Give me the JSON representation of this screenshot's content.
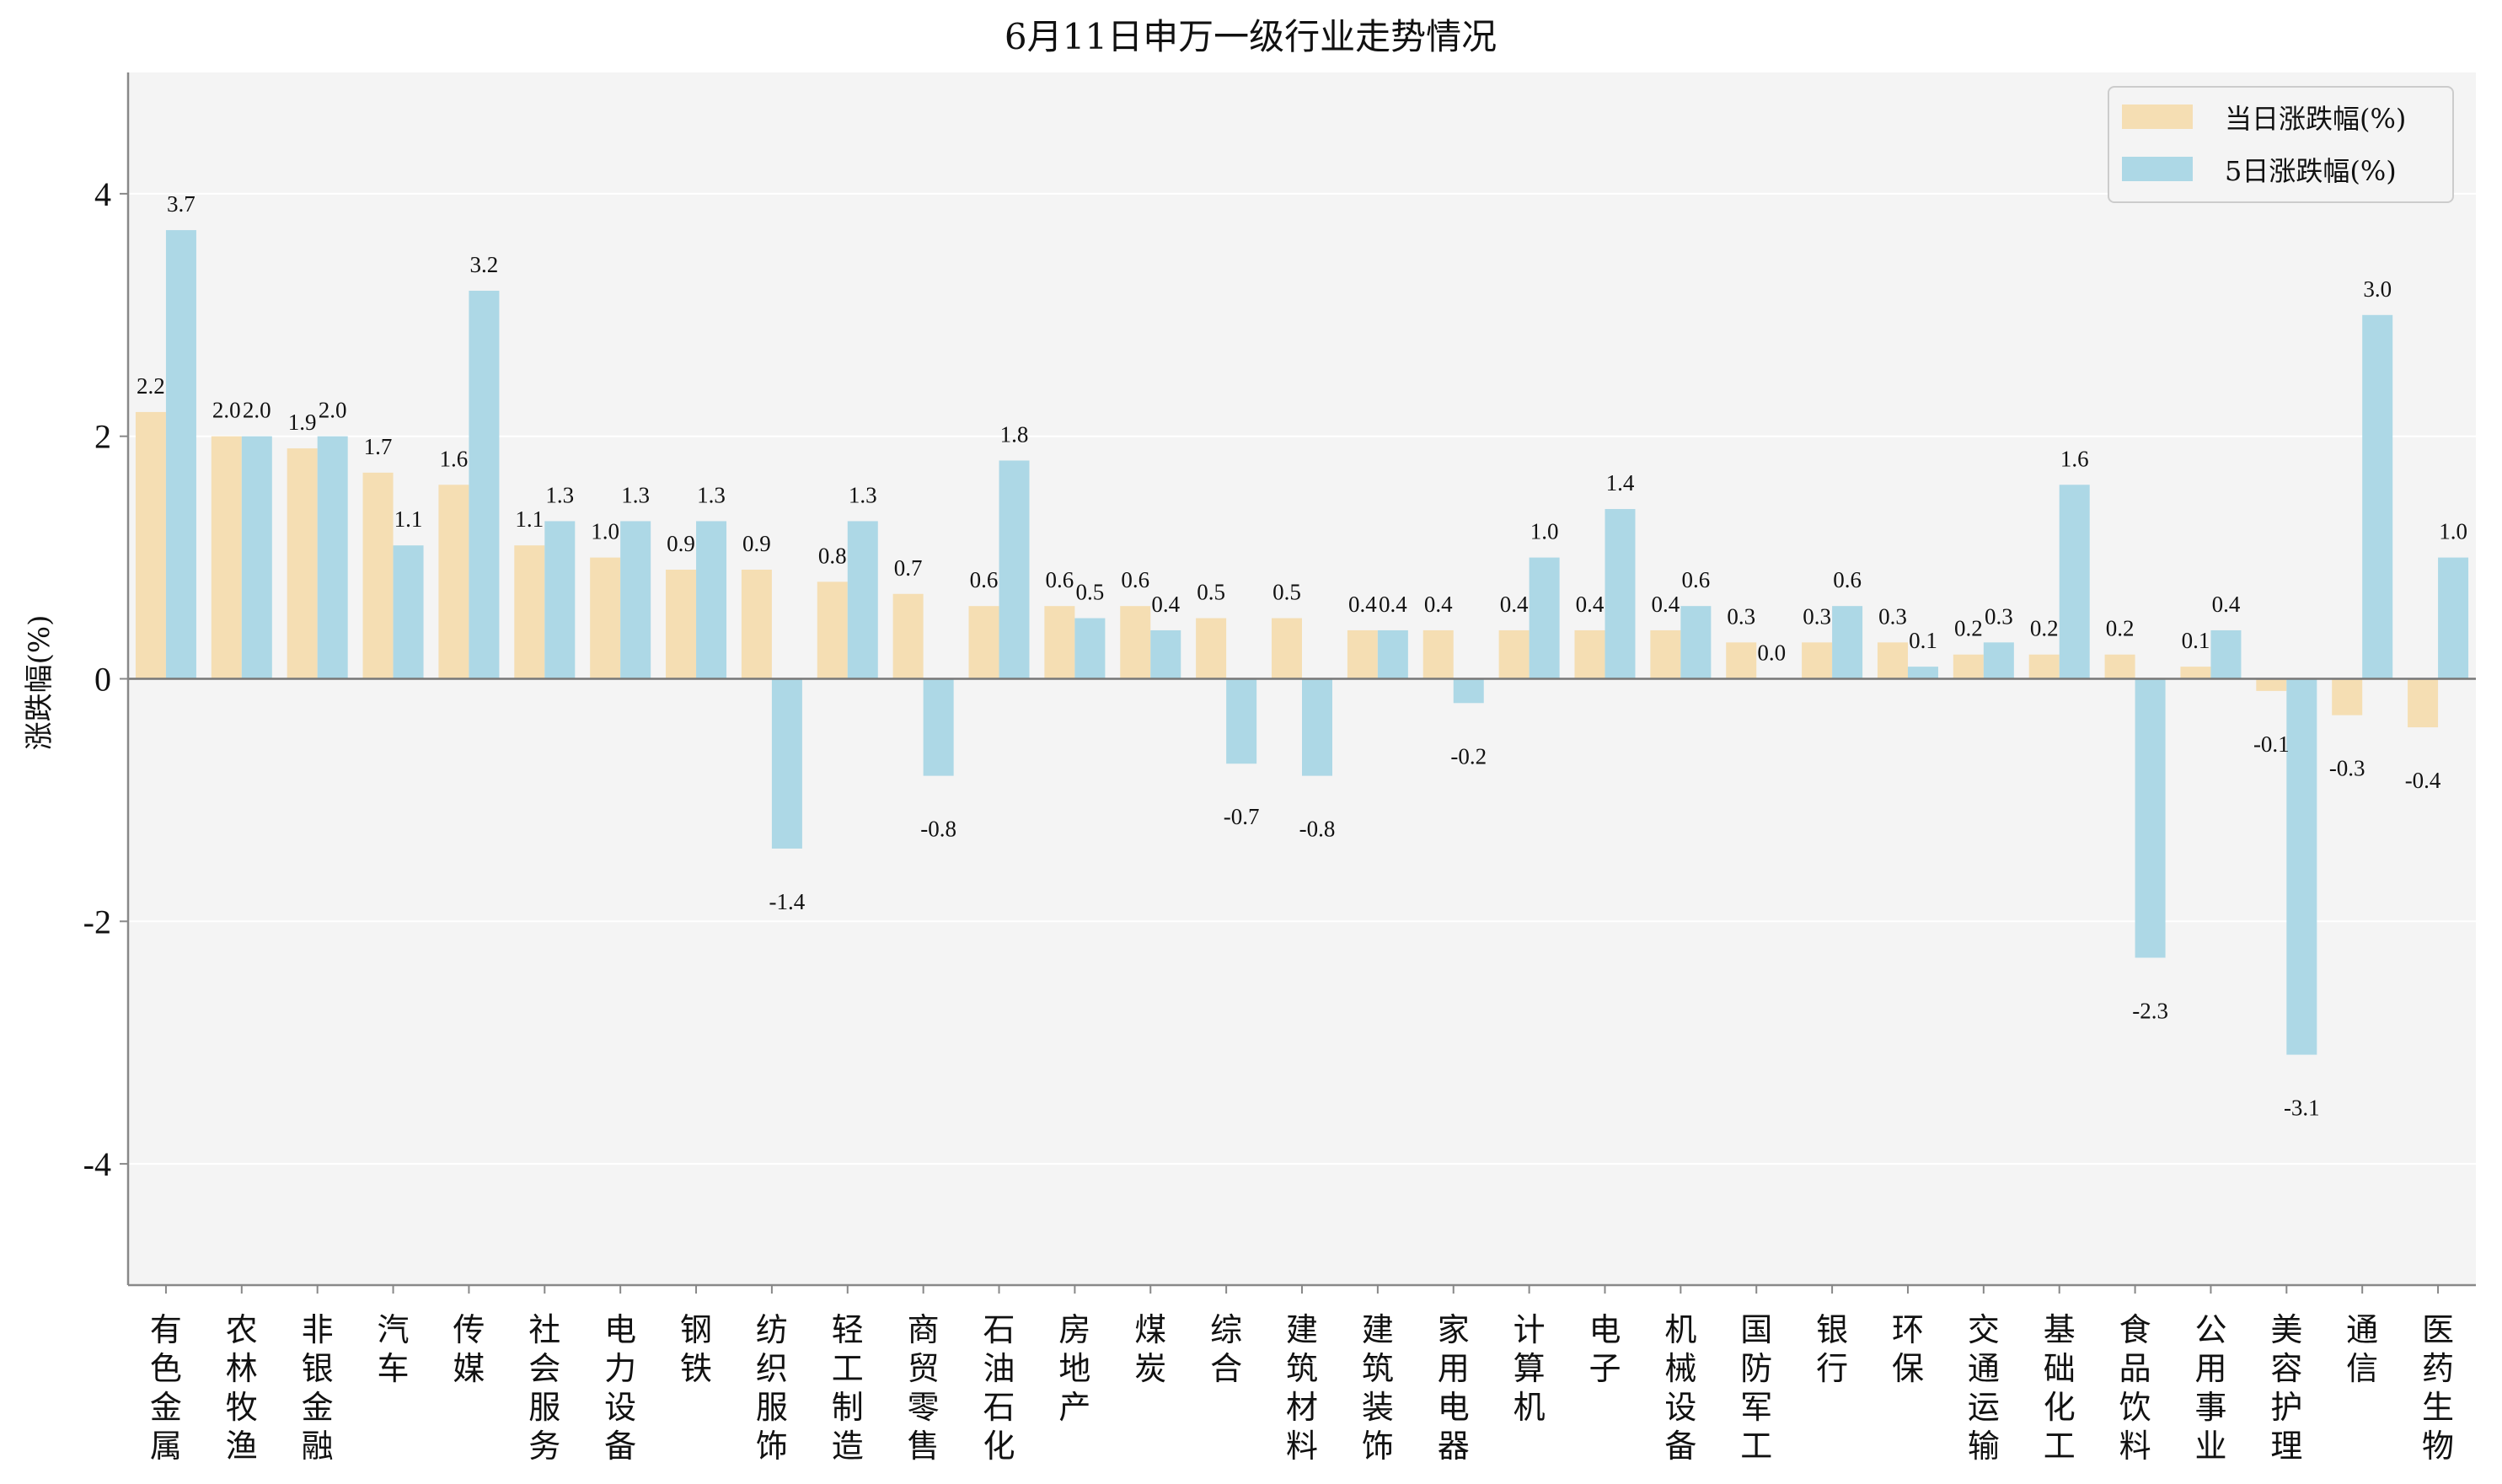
{
  "chart_data": {
    "type": "bar",
    "title": "6月11日申万一级行业走势情况",
    "ylabel": "涨跌幅(%)",
    "xlabel": "",
    "ylim": [
      -5,
      5
    ],
    "yticks": [
      4,
      2,
      0,
      -2,
      -4
    ],
    "ytick_labels": [
      "4",
      "2",
      "0",
      "-2",
      "-4"
    ],
    "grid": "horizontal",
    "legend_position": "top-right",
    "categories": [
      "有色金属",
      "农林牧渔",
      "非银金融",
      "汽车",
      "传媒",
      "社会服务",
      "电力设备",
      "钢铁",
      "纺织服饰",
      "轻工制造",
      "商贸零售",
      "石油石化",
      "房地产",
      "煤炭",
      "综合",
      "建筑材料",
      "建筑装饰",
      "家用电器",
      "计算机",
      "电子",
      "机械设备",
      "国防军工",
      "银行",
      "环保",
      "交通运输",
      "基础化工",
      "食品饮料",
      "公用事业",
      "美容护理",
      "通信",
      "医药生物"
    ],
    "series": [
      {
        "name": "当日涨跌幅(%)",
        "color": "#f5deb3",
        "values": [
          2.2,
          2.0,
          1.9,
          1.7,
          1.6,
          1.1,
          1.0,
          0.9,
          0.9,
          0.8,
          0.7,
          0.6,
          0.6,
          0.6,
          0.5,
          0.5,
          0.4,
          0.4,
          0.4,
          0.4,
          0.4,
          0.3,
          0.3,
          0.3,
          0.2,
          0.2,
          0.2,
          0.1,
          -0.1,
          -0.3,
          -0.4
        ],
        "labels": [
          "2.2",
          "2.0",
          "1.9",
          "1.7",
          "1.6",
          "1.1",
          "1.0",
          "0.9",
          "0.9",
          "0.8",
          "0.7",
          "0.6",
          "0.6",
          "0.6",
          "0.5",
          "0.5",
          "0.4",
          "0.4",
          "0.4",
          "0.4",
          "0.4",
          "0.3",
          "0.3",
          "0.3",
          "0.2",
          "0.2",
          "0.2",
          "0.1",
          "-0.1",
          "-0.3",
          "-0.4"
        ]
      },
      {
        "name": "5日涨跌幅(%)",
        "color": "#add8e6",
        "values": [
          3.7,
          2.0,
          2.0,
          1.1,
          3.2,
          1.3,
          1.3,
          1.3,
          -1.4,
          1.3,
          -0.8,
          1.8,
          0.5,
          0.4,
          -0.7,
          -0.8,
          0.4,
          -0.2,
          1.0,
          1.4,
          0.6,
          0.0,
          0.6,
          0.1,
          0.3,
          1.6,
          -2.3,
          0.4,
          -3.1,
          3.0,
          1.0
        ],
        "labels": [
          "3.7",
          "2.0",
          "2.0",
          "1.1",
          "3.2",
          "1.3",
          "1.3",
          "1.3",
          "-1.4",
          "1.3",
          "-0.8",
          "1.8",
          "0.5",
          "0.4",
          "-0.7",
          "-0.8",
          "0.4",
          "-0.2",
          "1.0",
          "1.4",
          "0.6",
          "0.0",
          "0.6",
          "0.1",
          "0.3",
          "1.6",
          "-2.3",
          "0.4",
          "-3.1",
          "3.0",
          "1.0"
        ]
      }
    ],
    "colors": {
      "plot_background": "#f4f4f4",
      "grid": "#ffffff",
      "axis": "#888888",
      "zero_line": "#777777"
    }
  }
}
